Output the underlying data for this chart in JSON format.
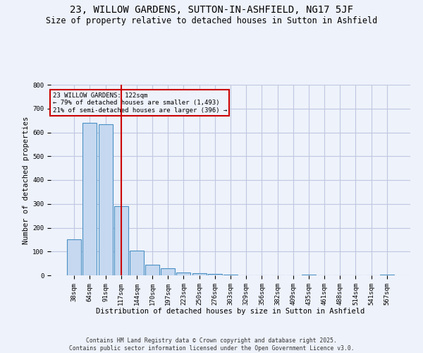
{
  "title": "23, WILLOW GARDENS, SUTTON-IN-ASHFIELD, NG17 5JF",
  "subtitle": "Size of property relative to detached houses in Sutton in Ashfield",
  "xlabel": "Distribution of detached houses by size in Sutton in Ashfield",
  "ylabel": "Number of detached properties",
  "categories": [
    "38sqm",
    "64sqm",
    "91sqm",
    "117sqm",
    "144sqm",
    "170sqm",
    "197sqm",
    "223sqm",
    "250sqm",
    "276sqm",
    "303sqm",
    "329sqm",
    "356sqm",
    "382sqm",
    "409sqm",
    "435sqm",
    "461sqm",
    "488sqm",
    "514sqm",
    "541sqm",
    "567sqm"
  ],
  "values": [
    150,
    640,
    635,
    290,
    103,
    45,
    30,
    12,
    10,
    5,
    4,
    0,
    0,
    0,
    0,
    2,
    0,
    0,
    0,
    0,
    3
  ],
  "bar_color": "#c5d8f0",
  "bar_edge_color": "#4a90c4",
  "vline_x_index": 3,
  "vline_color": "#cc0000",
  "annotation_text": "23 WILLOW GARDENS: 122sqm\n← 79% of detached houses are smaller (1,493)\n21% of semi-detached houses are larger (396) →",
  "annotation_box_color": "#cc0000",
  "bg_color": "#eef2fb",
  "grid_color": "#c0c8e0",
  "ylim": [
    0,
    800
  ],
  "yticks": [
    0,
    100,
    200,
    300,
    400,
    500,
    600,
    700,
    800
  ],
  "title_fontsize": 10,
  "subtitle_fontsize": 8.5,
  "axis_label_fontsize": 7.5,
  "tick_fontsize": 6.5,
  "footer_text": "Contains HM Land Registry data © Crown copyright and database right 2025.\nContains public sector information licensed under the Open Government Licence v3.0."
}
